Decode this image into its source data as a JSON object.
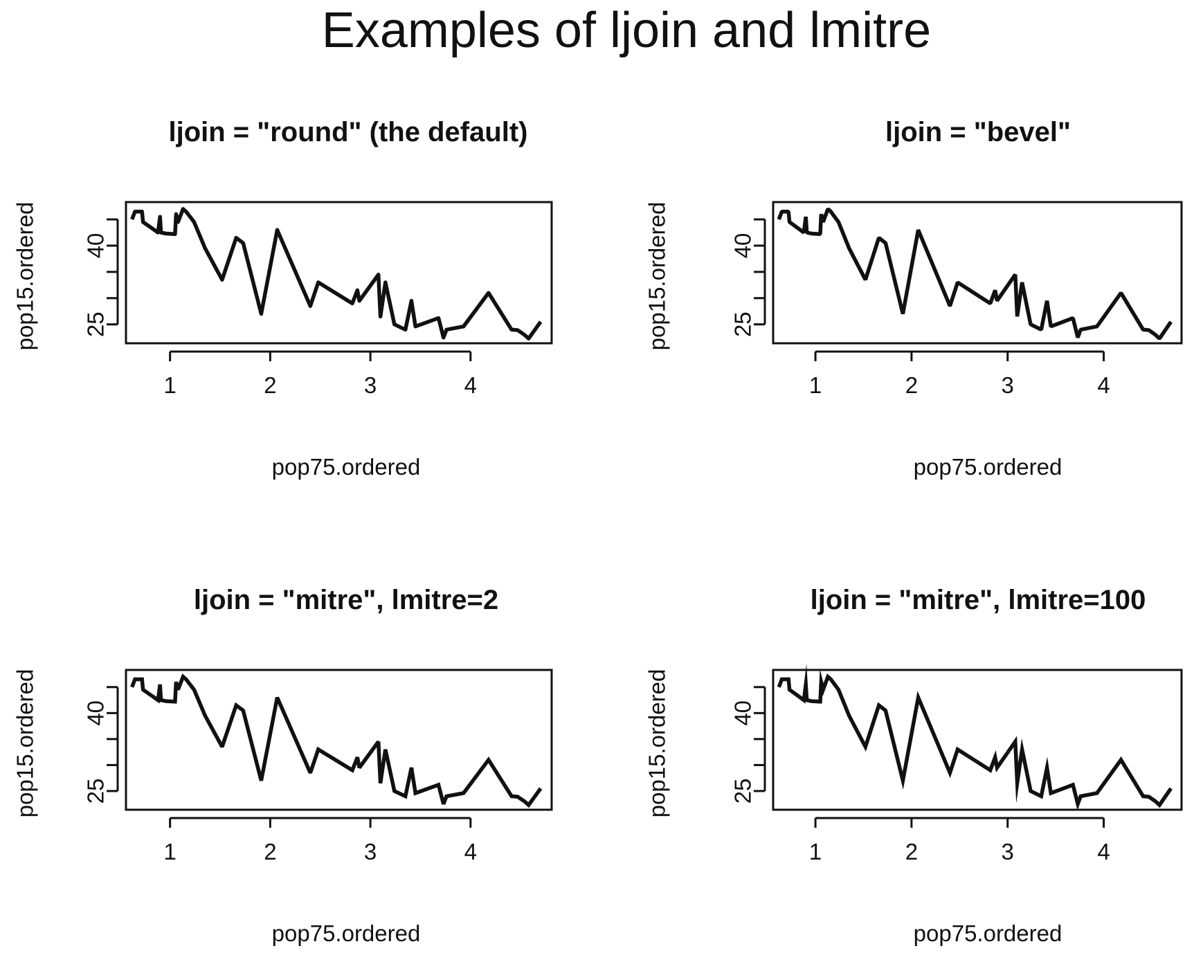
{
  "suptitle": "Examples of ljoin and lmitre",
  "chart_data": [
    {
      "type": "line",
      "title": "ljoin = \"round\" (the default)",
      "xlabel": "pop75.ordered",
      "ylabel": "pop15.ordered",
      "line_join": "round",
      "miter_limit": 10,
      "xlim": [
        0.56,
        4.81
      ],
      "ylim": [
        21.4,
        48.3
      ],
      "x_ticks": [
        1,
        2,
        3,
        4
      ],
      "x_tick_labels": [
        "1",
        "2",
        "3",
        "4"
      ],
      "y_ticks": [
        25,
        30,
        35,
        40,
        45
      ],
      "y_tick_labels": [
        "25",
        "",
        "",
        "40",
        ""
      ],
      "x": [
        0.62,
        0.65,
        0.72,
        0.73,
        0.88,
        0.9,
        0.91,
        0.96,
        1.05,
        1.06,
        1.08,
        1.13,
        1.16,
        1.22,
        1.24,
        1.35,
        1.52,
        1.66,
        1.73,
        1.91,
        2.07,
        2.4,
        2.48,
        2.82,
        2.87,
        2.89,
        3.08,
        3.1,
        3.15,
        3.24,
        3.35,
        3.41,
        3.45,
        3.68,
        3.73,
        3.76,
        3.93,
        4.18,
        4.41,
        4.47,
        4.54,
        4.58,
        4.7
      ],
      "y": [
        45.0,
        46.5,
        46.5,
        44.5,
        42.5,
        45.5,
        42.5,
        42.3,
        42.2,
        46.0,
        44.5,
        47.0,
        46.5,
        45.0,
        44.5,
        39.5,
        33.5,
        41.5,
        40.5,
        27.0,
        43.0,
        28.5,
        33.0,
        29.0,
        31.5,
        29.5,
        34.5,
        26.5,
        33.0,
        25.0,
        24.0,
        29.5,
        24.6,
        26.2,
        22.5,
        24.0,
        24.6,
        31.0,
        24.0,
        23.9,
        23.0,
        22.3,
        25.5
      ]
    },
    {
      "type": "line",
      "title": "ljoin = \"bevel\"",
      "xlabel": "pop75.ordered",
      "ylabel": "pop15.ordered",
      "line_join": "bevel",
      "miter_limit": 10,
      "xlim": [
        0.56,
        4.81
      ],
      "ylim": [
        21.4,
        48.3
      ],
      "x_ticks": [
        1,
        2,
        3,
        4
      ],
      "x_tick_labels": [
        "1",
        "2",
        "3",
        "4"
      ],
      "y_ticks": [
        25,
        30,
        35,
        40,
        45
      ],
      "y_tick_labels": [
        "25",
        "",
        "",
        "40",
        ""
      ],
      "x": [
        0.62,
        0.65,
        0.72,
        0.73,
        0.88,
        0.9,
        0.91,
        0.96,
        1.05,
        1.06,
        1.08,
        1.13,
        1.16,
        1.22,
        1.24,
        1.35,
        1.52,
        1.66,
        1.73,
        1.91,
        2.07,
        2.4,
        2.48,
        2.82,
        2.87,
        2.89,
        3.08,
        3.1,
        3.15,
        3.24,
        3.35,
        3.41,
        3.45,
        3.68,
        3.73,
        3.76,
        3.93,
        4.18,
        4.41,
        4.47,
        4.54,
        4.58,
        4.7
      ],
      "y": [
        45.0,
        46.5,
        46.5,
        44.5,
        42.5,
        45.5,
        42.5,
        42.3,
        42.2,
        46.0,
        44.5,
        47.0,
        46.5,
        45.0,
        44.5,
        39.5,
        33.5,
        41.5,
        40.5,
        27.0,
        43.0,
        28.5,
        33.0,
        29.0,
        31.5,
        29.5,
        34.5,
        26.5,
        33.0,
        25.0,
        24.0,
        29.5,
        24.6,
        26.2,
        22.5,
        24.0,
        24.6,
        31.0,
        24.0,
        23.9,
        23.0,
        22.3,
        25.5
      ]
    },
    {
      "type": "line",
      "title": "ljoin = \"mitre\", lmitre=2",
      "xlabel": "pop75.ordered",
      "ylabel": "pop15.ordered",
      "line_join": "miter",
      "miter_limit": 2,
      "xlim": [
        0.56,
        4.81
      ],
      "ylim": [
        21.4,
        48.3
      ],
      "x_ticks": [
        1,
        2,
        3,
        4
      ],
      "x_tick_labels": [
        "1",
        "2",
        "3",
        "4"
      ],
      "y_ticks": [
        25,
        30,
        35,
        40,
        45
      ],
      "y_tick_labels": [
        "25",
        "",
        "",
        "40",
        ""
      ],
      "x": [
        0.62,
        0.65,
        0.72,
        0.73,
        0.88,
        0.9,
        0.91,
        0.96,
        1.05,
        1.06,
        1.08,
        1.13,
        1.16,
        1.22,
        1.24,
        1.35,
        1.52,
        1.66,
        1.73,
        1.91,
        2.07,
        2.4,
        2.48,
        2.82,
        2.87,
        2.89,
        3.08,
        3.1,
        3.15,
        3.24,
        3.35,
        3.41,
        3.45,
        3.68,
        3.73,
        3.76,
        3.93,
        4.18,
        4.41,
        4.47,
        4.54,
        4.58,
        4.7
      ],
      "y": [
        45.0,
        46.5,
        46.5,
        44.5,
        42.5,
        45.5,
        42.5,
        42.3,
        42.2,
        46.0,
        44.5,
        47.0,
        46.5,
        45.0,
        44.5,
        39.5,
        33.5,
        41.5,
        40.5,
        27.0,
        43.0,
        28.5,
        33.0,
        29.0,
        31.5,
        29.5,
        34.5,
        26.5,
        33.0,
        25.0,
        24.0,
        29.5,
        24.6,
        26.2,
        22.5,
        24.0,
        24.6,
        31.0,
        24.0,
        23.9,
        23.0,
        22.3,
        25.5
      ]
    },
    {
      "type": "line",
      "title": "ljoin = \"mitre\", lmitre=100",
      "xlabel": "pop75.ordered",
      "ylabel": "pop15.ordered",
      "line_join": "miter",
      "miter_limit": 100,
      "xlim": [
        0.56,
        4.81
      ],
      "ylim": [
        21.4,
        48.3
      ],
      "x_ticks": [
        1,
        2,
        3,
        4
      ],
      "x_tick_labels": [
        "1",
        "2",
        "3",
        "4"
      ],
      "y_ticks": [
        25,
        30,
        35,
        40,
        45
      ],
      "y_tick_labels": [
        "25",
        "",
        "",
        "40",
        ""
      ],
      "x": [
        0.62,
        0.65,
        0.72,
        0.73,
        0.88,
        0.9,
        0.91,
        0.96,
        1.05,
        1.06,
        1.08,
        1.13,
        1.16,
        1.22,
        1.24,
        1.35,
        1.52,
        1.66,
        1.73,
        1.91,
        2.07,
        2.4,
        2.48,
        2.82,
        2.87,
        2.89,
        3.08,
        3.1,
        3.15,
        3.24,
        3.35,
        3.41,
        3.45,
        3.68,
        3.73,
        3.76,
        3.93,
        4.18,
        4.41,
        4.47,
        4.54,
        4.58,
        4.7
      ],
      "y": [
        45.0,
        46.5,
        46.5,
        44.5,
        42.5,
        45.5,
        42.5,
        42.3,
        42.2,
        46.0,
        44.5,
        47.0,
        46.5,
        45.0,
        44.5,
        39.5,
        33.5,
        41.5,
        40.5,
        27.0,
        43.0,
        28.5,
        33.0,
        29.0,
        31.5,
        29.5,
        34.5,
        26.5,
        33.0,
        25.0,
        24.0,
        29.5,
        24.6,
        26.2,
        22.5,
        24.0,
        24.6,
        31.0,
        24.0,
        23.9,
        23.0,
        22.3,
        25.5
      ]
    }
  ]
}
